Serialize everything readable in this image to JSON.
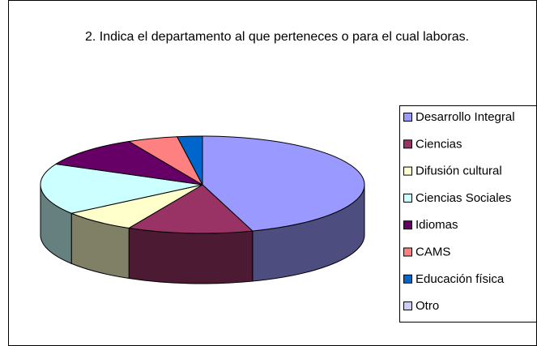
{
  "chart_data": {
    "type": "pie3d",
    "title": "2. Indica el departamento al que perteneces o para el cual laboras.",
    "categories": [
      "Desarrollo Integral",
      "Ciencias",
      "Difusión cultural",
      "Ciencias Sociales",
      "Idiomas",
      "CAMS",
      "Educación física",
      "Otro"
    ],
    "values": [
      45,
      12.5,
      7.5,
      17,
      10.5,
      5,
      2.5,
      0
    ],
    "colors": [
      "#9999ff",
      "#993366",
      "#ffffcc",
      "#ccffff",
      "#660066",
      "#ff8080",
      "#0066cc",
      "#ccccff"
    ],
    "legend": "right"
  }
}
